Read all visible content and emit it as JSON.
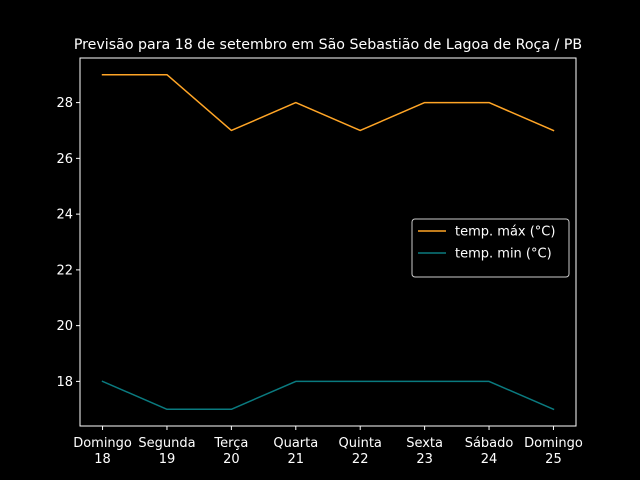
{
  "chart_data": {
    "type": "line",
    "title": "Previsão para 18 de setembro em São Sebastião de Lagoa de Roça / PB",
    "xlabel": "",
    "ylabel": "",
    "categories": [
      {
        "day": "Domingo",
        "date": "18"
      },
      {
        "day": "Segunda",
        "date": "19"
      },
      {
        "day": "Terça",
        "date": "20"
      },
      {
        "day": "Quarta",
        "date": "21"
      },
      {
        "day": "Quinta",
        "date": "22"
      },
      {
        "day": "Sexta",
        "date": "23"
      },
      {
        "day": "Sábado",
        "date": "24"
      },
      {
        "day": "Domingo",
        "date": "25"
      }
    ],
    "series": [
      {
        "name": "temp. máx (°C)",
        "color": "#ffa526",
        "values": [
          29,
          29,
          27,
          28,
          27,
          28,
          28,
          27
        ]
      },
      {
        "name": "temp. min (°C)",
        "color": "#0a7a7f",
        "values": [
          18,
          17,
          17,
          18,
          18,
          18,
          18,
          17
        ]
      }
    ],
    "yticks": [
      18,
      20,
      22,
      24,
      26,
      28
    ],
    "ylim": [
      16.4,
      29.6
    ],
    "grid": false,
    "legend_position": "center-right",
    "background": "#000000",
    "foreground": "#ffffff"
  }
}
